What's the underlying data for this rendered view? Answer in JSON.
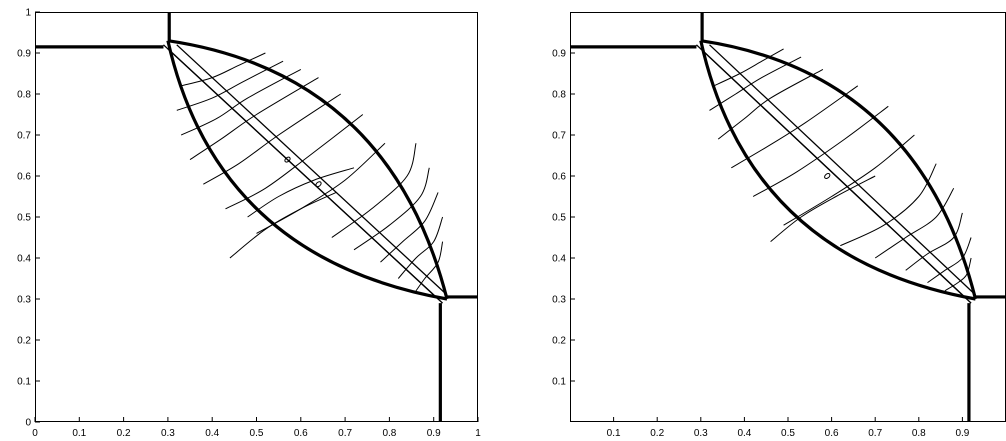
{
  "chart_data": [
    {
      "type": "contour",
      "title": "",
      "xlabel": "",
      "ylabel": "",
      "xlim": [
        0,
        1
      ],
      "ylim": [
        0,
        1
      ],
      "grid": false,
      "xticks": [
        "0",
        "0.1",
        "0.2",
        "0.3",
        "0.4",
        "0.5",
        "0.6",
        "0.7",
        "0.8",
        "0.9",
        "1"
      ],
      "yticks": [
        "0",
        "0.1",
        "0.2",
        "0.3",
        "0.4",
        "0.5",
        "0.6",
        "0.7",
        "0.8",
        "0.9",
        "1"
      ],
      "colors": {
        "line": "#000000"
      },
      "features": {
        "lens_corners": [
          [
            0.3,
            0.93
          ],
          [
            0.93,
            0.3
          ]
        ],
        "upper_boundary_ctrl": [
          0.8,
          0.85
        ],
        "lower_boundary_ctrl": [
          0.41,
          0.4
        ],
        "slip_lines": [
          [
            [
              0.29,
              0.92
            ],
            [
              0.92,
              0.29
            ]
          ],
          [
            [
              0.3,
              0.91
            ],
            [
              0.91,
              0.3
            ]
          ],
          [
            [
              0.32,
              0.92
            ],
            [
              0.93,
              0.31
            ]
          ]
        ],
        "shock_lines": [
          [
            [
              0.0,
              0.915
            ],
            [
              0.29,
              0.915
            ]
          ],
          [
            [
              0.303,
              0.93
            ],
            [
              0.303,
              1.0
            ]
          ],
          [
            [
              0.93,
              0.305
            ],
            [
              1.0,
              0.305
            ]
          ],
          [
            [
              0.915,
              0.29
            ],
            [
              0.915,
              0.0
            ]
          ]
        ],
        "contours": [
          [
            [
              0.33,
              0.82
            ],
            [
              0.4,
              0.84
            ],
            [
              0.46,
              0.87
            ],
            [
              0.52,
              0.9
            ]
          ],
          [
            [
              0.32,
              0.76
            ],
            [
              0.4,
              0.79
            ],
            [
              0.47,
              0.83
            ],
            [
              0.56,
              0.88
            ]
          ],
          [
            [
              0.33,
              0.7
            ],
            [
              0.41,
              0.74
            ],
            [
              0.48,
              0.79
            ],
            [
              0.6,
              0.86
            ]
          ],
          [
            [
              0.35,
              0.64
            ],
            [
              0.42,
              0.69
            ],
            [
              0.5,
              0.75
            ],
            [
              0.64,
              0.84
            ]
          ],
          [
            [
              0.38,
              0.58
            ],
            [
              0.46,
              0.63
            ],
            [
              0.55,
              0.7
            ],
            [
              0.69,
              0.8
            ]
          ],
          [
            [
              0.43,
              0.52
            ],
            [
              0.52,
              0.57
            ],
            [
              0.62,
              0.65
            ],
            [
              0.74,
              0.75
            ]
          ],
          [
            [
              0.5,
              0.46
            ],
            [
              0.6,
              0.52
            ],
            [
              0.7,
              0.59
            ],
            [
              0.79,
              0.68
            ]
          ],
          [
            [
              0.86,
              0.68
            ],
            [
              0.84,
              0.6
            ],
            [
              0.76,
              0.52
            ],
            [
              0.67,
              0.45
            ]
          ],
          [
            [
              0.89,
              0.62
            ],
            [
              0.87,
              0.55
            ],
            [
              0.8,
              0.48
            ],
            [
              0.72,
              0.42
            ]
          ],
          [
            [
              0.91,
              0.56
            ],
            [
              0.88,
              0.49
            ],
            [
              0.83,
              0.44
            ],
            [
              0.78,
              0.39
            ]
          ],
          [
            [
              0.92,
              0.5
            ],
            [
              0.9,
              0.44
            ],
            [
              0.86,
              0.4
            ],
            [
              0.82,
              0.35
            ]
          ],
          [
            [
              0.92,
              0.44
            ],
            [
              0.91,
              0.39
            ],
            [
              0.88,
              0.35
            ],
            [
              0.86,
              0.32
            ]
          ],
          [
            [
              0.68,
              0.56
            ],
            [
              0.6,
              0.52
            ],
            [
              0.52,
              0.47
            ],
            [
              0.44,
              0.4
            ]
          ],
          [
            [
              0.72,
              0.62
            ],
            [
              0.63,
              0.59
            ],
            [
              0.55,
              0.55
            ],
            [
              0.48,
              0.5
            ]
          ]
        ],
        "blobs": [
          [
            0.57,
            0.64
          ],
          [
            0.64,
            0.58
          ]
        ]
      }
    },
    {
      "type": "contour",
      "title": "",
      "xlabel": "",
      "ylabel": "",
      "xlim": [
        0,
        1
      ],
      "ylim": [
        0,
        1
      ],
      "grid": false,
      "xticks": [
        "0.1",
        "0.2",
        "0.3",
        "0.4",
        "0.5",
        "0.6",
        "0.7",
        "0.8",
        "0.9"
      ],
      "yticks": [
        "0.1",
        "0.2",
        "0.3",
        "0.4",
        "0.5",
        "0.6",
        "0.7",
        "0.8",
        "0.9"
      ],
      "colors": {
        "line": "#000000"
      },
      "features": {
        "lens_corners": [
          [
            0.3,
            0.93
          ],
          [
            0.93,
            0.3
          ]
        ],
        "upper_boundary_ctrl": [
          0.8,
          0.85
        ],
        "lower_boundary_ctrl": [
          0.41,
          0.4
        ],
        "slip_lines": [
          [
            [
              0.29,
              0.92
            ],
            [
              0.92,
              0.29
            ]
          ],
          [
            [
              0.3,
              0.91
            ],
            [
              0.91,
              0.3
            ]
          ],
          [
            [
              0.32,
              0.92
            ],
            [
              0.93,
              0.31
            ]
          ]
        ],
        "shock_lines": [
          [
            [
              0.0,
              0.915
            ],
            [
              0.29,
              0.915
            ]
          ],
          [
            [
              0.303,
              0.93
            ],
            [
              0.303,
              1.0
            ]
          ],
          [
            [
              0.93,
              0.305
            ],
            [
              1.0,
              0.305
            ]
          ],
          [
            [
              0.915,
              0.29
            ],
            [
              0.915,
              0.0
            ]
          ]
        ],
        "contours": [
          [
            [
              0.33,
              0.82
            ],
            [
              0.39,
              0.85
            ],
            [
              0.44,
              0.88
            ],
            [
              0.49,
              0.91
            ]
          ],
          [
            [
              0.32,
              0.76
            ],
            [
              0.38,
              0.8
            ],
            [
              0.44,
              0.84
            ],
            [
              0.53,
              0.89
            ]
          ],
          [
            [
              0.34,
              0.69
            ],
            [
              0.4,
              0.74
            ],
            [
              0.46,
              0.79
            ],
            [
              0.58,
              0.86
            ]
          ],
          [
            [
              0.37,
              0.62
            ],
            [
              0.45,
              0.67
            ],
            [
              0.54,
              0.73
            ],
            [
              0.66,
              0.82
            ]
          ],
          [
            [
              0.42,
              0.55
            ],
            [
              0.52,
              0.61
            ],
            [
              0.63,
              0.69
            ],
            [
              0.73,
              0.77
            ]
          ],
          [
            [
              0.49,
              0.48
            ],
            [
              0.6,
              0.55
            ],
            [
              0.7,
              0.62
            ],
            [
              0.79,
              0.7
            ]
          ],
          [
            [
              0.84,
              0.63
            ],
            [
              0.8,
              0.55
            ],
            [
              0.72,
              0.48
            ],
            [
              0.62,
              0.43
            ]
          ],
          [
            [
              0.88,
              0.57
            ],
            [
              0.84,
              0.5
            ],
            [
              0.77,
              0.45
            ],
            [
              0.7,
              0.4
            ]
          ],
          [
            [
              0.9,
              0.51
            ],
            [
              0.88,
              0.45
            ],
            [
              0.82,
              0.41
            ],
            [
              0.77,
              0.37
            ]
          ],
          [
            [
              0.92,
              0.45
            ],
            [
              0.9,
              0.4
            ],
            [
              0.86,
              0.37
            ],
            [
              0.82,
              0.34
            ]
          ],
          [
            [
              0.92,
              0.4
            ],
            [
              0.91,
              0.36
            ],
            [
              0.89,
              0.34
            ],
            [
              0.86,
              0.32
            ]
          ],
          [
            [
              0.7,
              0.6
            ],
            [
              0.61,
              0.55
            ],
            [
              0.53,
              0.5
            ],
            [
              0.46,
              0.44
            ]
          ]
        ],
        "blobs": [
          [
            0.59,
            0.6
          ]
        ]
      }
    }
  ]
}
